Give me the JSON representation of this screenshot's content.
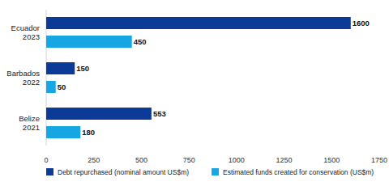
{
  "chart_data": {
    "type": "bar",
    "orientation": "horizontal",
    "categories": [
      "Ecuador 2023",
      "Barbados 2022",
      "Belize 2021"
    ],
    "series": [
      {
        "name": "Debt repurchased (nominal amount US$m)",
        "color": "#0b3b96",
        "values": [
          1600,
          150,
          553
        ]
      },
      {
        "name": "Estimated funds created for conservation (US$m)",
        "color": "#15a6e3",
        "values": [
          450,
          50,
          180
        ]
      }
    ],
    "xlim": [
      0,
      1750
    ],
    "xticks": [
      0,
      250,
      500,
      750,
      1000,
      1250,
      1500,
      1750
    ],
    "data_labels": true,
    "grid": false,
    "legend": "bottom"
  }
}
